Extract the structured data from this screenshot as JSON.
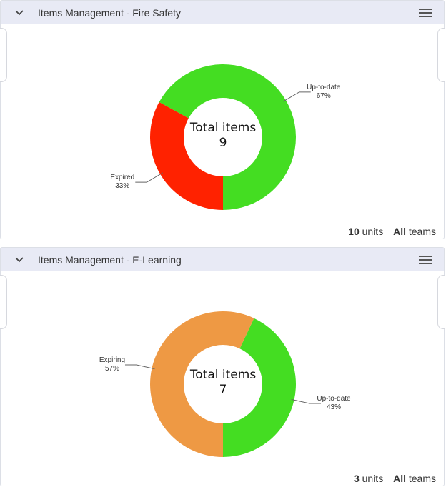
{
  "colors": {
    "header_bg": "#e8eaf5",
    "up_to_date": "#44dd22",
    "expired": "#ff2200",
    "expiring": "#ee9944"
  },
  "icons": {
    "collapse": "chevron-down-icon",
    "menu": "hamburger-menu-icon"
  },
  "panels": [
    {
      "title": "Items Management - Fire Safety",
      "center_label": "Total items",
      "center_value": "9",
      "units_count": "10",
      "units_label": "units",
      "teams_value": "All",
      "teams_label": "teams"
    },
    {
      "title": "Items Management - E-Learning",
      "center_label": "Total items",
      "center_value": "7",
      "units_count": "3",
      "units_label": "units",
      "teams_value": "All",
      "teams_label": "teams"
    }
  ],
  "chart_data": [
    {
      "type": "pie",
      "title": "",
      "slices": [
        {
          "label": "Up-to-date",
          "value": 67,
          "display": "67%",
          "color": "#44dd22"
        },
        {
          "label": "Expired",
          "value": 33,
          "display": "33%",
          "color": "#ff2200"
        }
      ]
    },
    {
      "type": "pie",
      "title": "",
      "slices": [
        {
          "label": "Up-to-date",
          "value": 43,
          "display": "43%",
          "color": "#44dd22"
        },
        {
          "label": "Expiring",
          "value": 57,
          "display": "57%",
          "color": "#ee9944"
        }
      ]
    }
  ]
}
